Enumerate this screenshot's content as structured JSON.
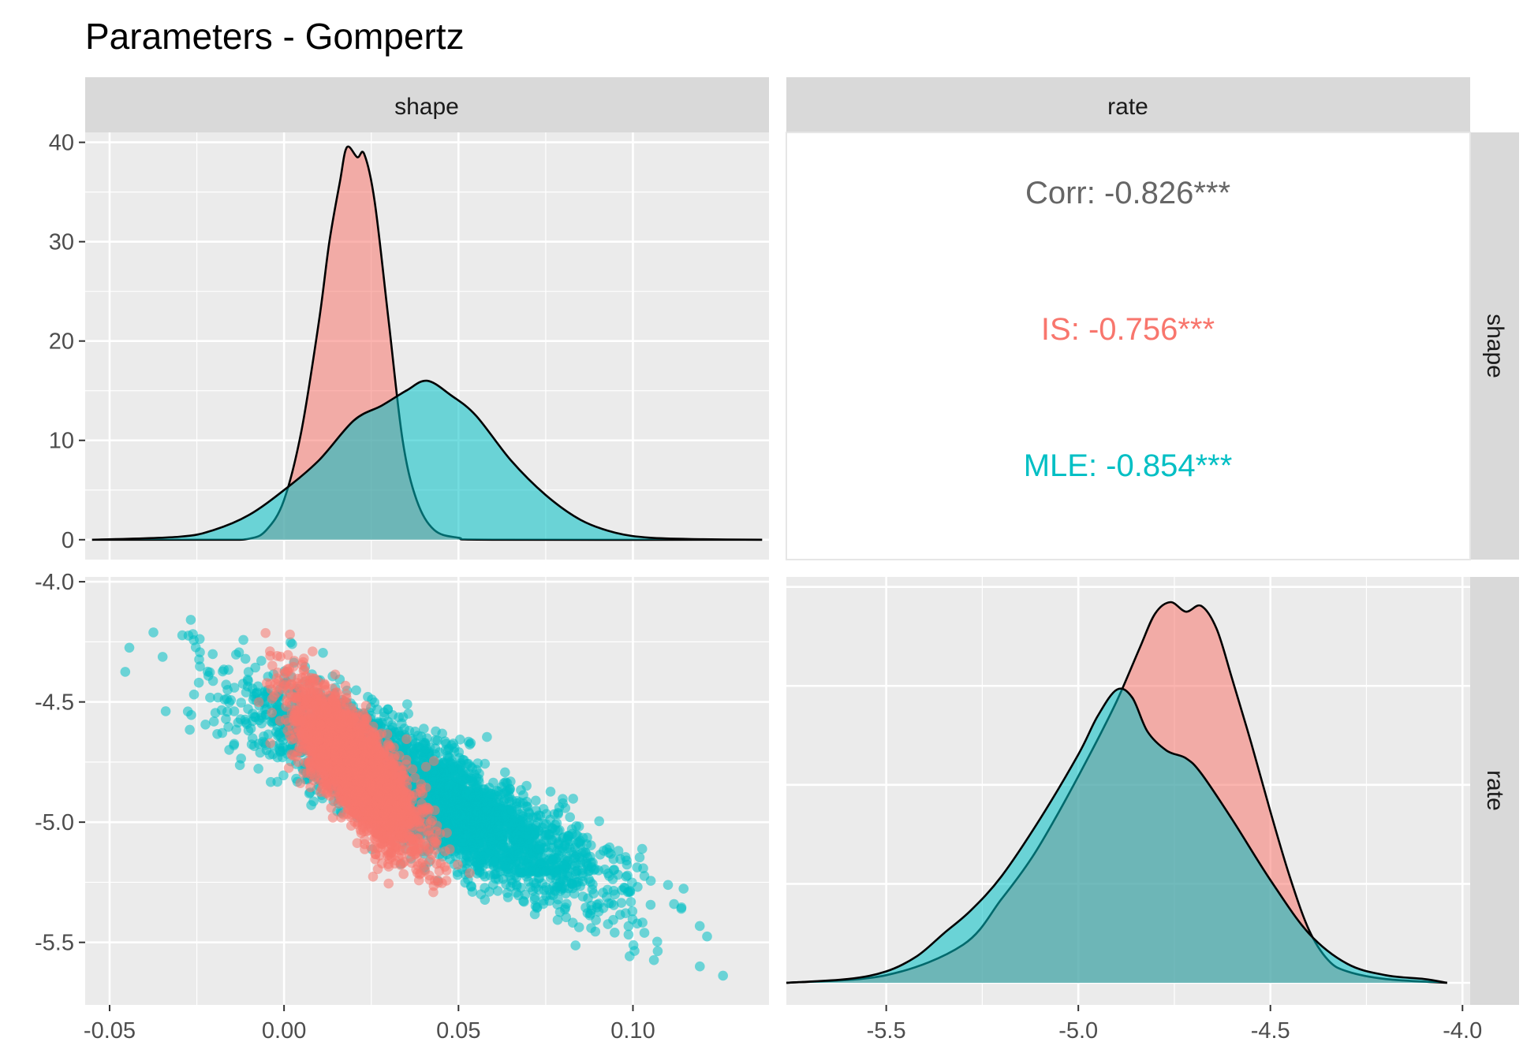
{
  "title": "Parameters - Gompertz",
  "colors": {
    "IS": "#F8766D",
    "MLE": "#00BFC4",
    "neutral": "#666666",
    "panel_bg": "#EBEBEB",
    "strip_bg": "#D9D9D9",
    "grid": "#FFFFFF"
  },
  "chart_data": {
    "type": "scatter",
    "variables": [
      "shape",
      "rate"
    ],
    "groups": [
      "IS",
      "MLE"
    ],
    "axes": {
      "shape": {
        "range": [
          -0.057,
          0.139
        ],
        "ticks": [
          -0.05,
          0.0,
          0.05,
          0.1
        ],
        "tick_labels": [
          "-0.05",
          "0.00",
          "0.05",
          "0.10"
        ]
      },
      "rate": {
        "range": [
          -5.76,
          -3.98
        ],
        "ticks": [
          -5.5,
          -5.0,
          -4.5,
          -4.0
        ],
        "tick_labels": [
          "-5.5",
          "-5.0",
          "-4.5",
          "-4.0"
        ]
      },
      "density_shape": {
        "range": [
          -2,
          41
        ],
        "ticks": [
          0,
          10,
          20,
          30,
          40
        ],
        "tick_labels": [
          "0",
          "10",
          "20",
          "30",
          "40"
        ]
      }
    },
    "density_shape": {
      "IS": [
        [
          -0.055,
          0
        ],
        [
          -0.02,
          0
        ],
        [
          -0.01,
          0.1
        ],
        [
          -0.005,
          1
        ],
        [
          0.0,
          4
        ],
        [
          0.005,
          11
        ],
        [
          0.01,
          22
        ],
        [
          0.013,
          30
        ],
        [
          0.016,
          36
        ],
        [
          0.018,
          39.5
        ],
        [
          0.021,
          38.5
        ],
        [
          0.023,
          38.8
        ],
        [
          0.026,
          34
        ],
        [
          0.03,
          22
        ],
        [
          0.034,
          10
        ],
        [
          0.038,
          4
        ],
        [
          0.043,
          1
        ],
        [
          0.05,
          0.2
        ],
        [
          0.06,
          0
        ],
        [
          0.137,
          0
        ]
      ],
      "MLE": [
        [
          -0.055,
          0
        ],
        [
          -0.03,
          0.3
        ],
        [
          -0.02,
          1
        ],
        [
          -0.01,
          2.5
        ],
        [
          0.0,
          5
        ],
        [
          0.01,
          8
        ],
        [
          0.02,
          12
        ],
        [
          0.028,
          13.5
        ],
        [
          0.035,
          15
        ],
        [
          0.041,
          16
        ],
        [
          0.048,
          14.5
        ],
        [
          0.055,
          12.5
        ],
        [
          0.065,
          8
        ],
        [
          0.075,
          4.5
        ],
        [
          0.085,
          2
        ],
        [
          0.095,
          0.7
        ],
        [
          0.105,
          0.2
        ],
        [
          0.12,
          0.05
        ],
        [
          0.137,
          0
        ]
      ]
    },
    "density_rate": {
      "IS": [
        [
          -5.76,
          0
        ],
        [
          -5.5,
          0.02
        ],
        [
          -5.3,
          0.1
        ],
        [
          -5.2,
          0.22
        ],
        [
          -5.12,
          0.33
        ],
        [
          -5.05,
          0.45
        ],
        [
          -4.97,
          0.6
        ],
        [
          -4.9,
          0.74
        ],
        [
          -4.84,
          0.88
        ],
        [
          -4.8,
          0.97
        ],
        [
          -4.76,
          1.0
        ],
        [
          -4.72,
          0.975
        ],
        [
          -4.68,
          0.99
        ],
        [
          -4.64,
          0.93
        ],
        [
          -4.6,
          0.8
        ],
        [
          -4.55,
          0.63
        ],
        [
          -4.5,
          0.45
        ],
        [
          -4.45,
          0.28
        ],
        [
          -4.4,
          0.14
        ],
        [
          -4.35,
          0.06
        ],
        [
          -4.3,
          0.03
        ],
        [
          -4.2,
          0.01
        ],
        [
          -4.04,
          0
        ]
      ],
      "MLE": [
        [
          -5.76,
          0
        ],
        [
          -5.6,
          0.01
        ],
        [
          -5.5,
          0.03
        ],
        [
          -5.42,
          0.07
        ],
        [
          -5.35,
          0.13
        ],
        [
          -5.28,
          0.19
        ],
        [
          -5.2,
          0.28
        ],
        [
          -5.1,
          0.43
        ],
        [
          -5.0,
          0.6
        ],
        [
          -4.95,
          0.7
        ],
        [
          -4.9,
          0.77
        ],
        [
          -4.86,
          0.75
        ],
        [
          -4.82,
          0.66
        ],
        [
          -4.77,
          0.61
        ],
        [
          -4.72,
          0.59
        ],
        [
          -4.68,
          0.55
        ],
        [
          -4.6,
          0.43
        ],
        [
          -4.5,
          0.27
        ],
        [
          -4.4,
          0.13
        ],
        [
          -4.3,
          0.05
        ],
        [
          -4.2,
          0.02
        ],
        [
          -4.1,
          0.01
        ],
        [
          -4.04,
          0
        ]
      ]
    },
    "scatter": {
      "IS": {
        "n": 3000,
        "center_shape": 0.021,
        "center_rate": -4.78,
        "sd_shape": 0.0085,
        "sd_rate": 0.16,
        "corr": -0.756
      },
      "MLE": {
        "n": 3500,
        "center_shape": 0.041,
        "center_rate": -4.89,
        "sd_shape": 0.025,
        "sd_rate": 0.21,
        "corr": -0.854
      }
    },
    "correlations": [
      {
        "label": "Corr: -0.826***",
        "group": "all"
      },
      {
        "label": "IS: -0.756***",
        "group": "IS"
      },
      {
        "label": "MLE: -0.854***",
        "group": "MLE"
      }
    ],
    "strips": {
      "top": [
        "shape",
        "rate"
      ],
      "right": [
        "shape",
        "rate"
      ]
    }
  }
}
